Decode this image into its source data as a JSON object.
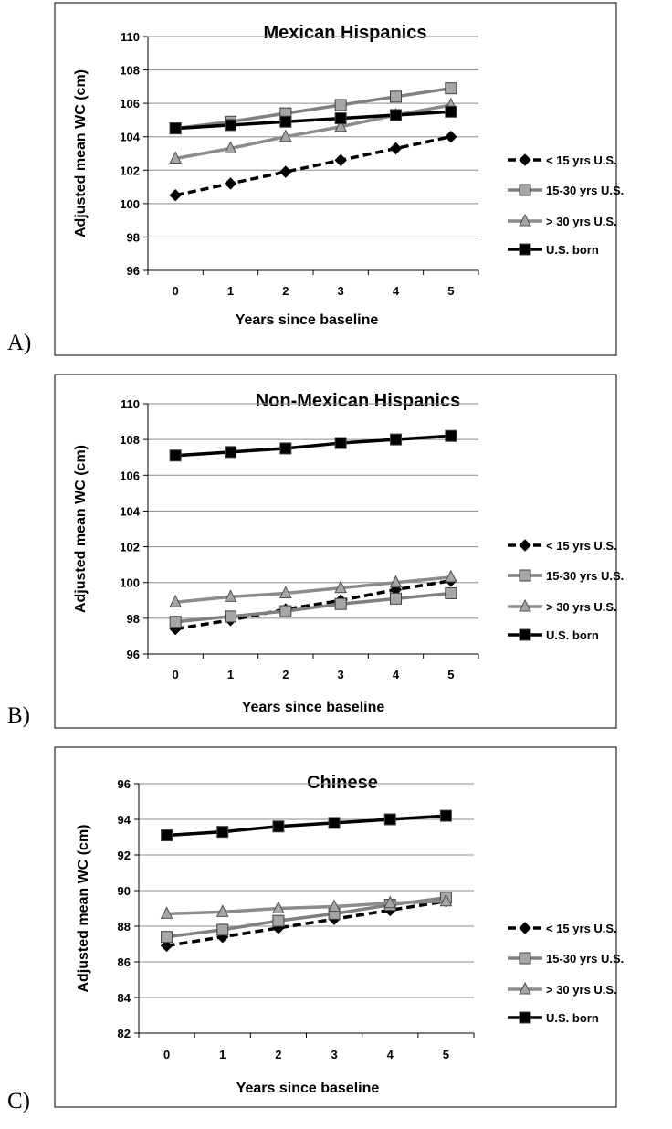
{
  "panel_labels": [
    "A)",
    "B)",
    "C)"
  ],
  "series_styles": [
    {
      "color": "#000000",
      "dash": true,
      "marker": "diamond"
    },
    {
      "color": "#808080",
      "dash": false,
      "marker": "square"
    },
    {
      "color": "#8c8c8c",
      "dash": false,
      "marker": "triangle"
    },
    {
      "color": "#000000",
      "dash": false,
      "marker": "square"
    }
  ],
  "chart_data": [
    {
      "type": "line",
      "title": "Mexican Hispanics",
      "xlabel": "Years since baseline",
      "ylabel": "Adjusted mean WC (cm)",
      "categories": [
        "0",
        "1",
        "2",
        "3",
        "4",
        "5"
      ],
      "yticks": [
        "96",
        "98",
        "100",
        "102",
        "104",
        "106",
        "108",
        "110"
      ],
      "ylim": [
        96,
        110
      ],
      "grid": true,
      "legend_position": "right",
      "series": [
        {
          "name": "< 15 yrs U.S.",
          "values": [
            100.5,
            101.2,
            101.9,
            102.6,
            103.3,
            104.0
          ]
        },
        {
          "name": "15-30 yrs U.S.",
          "values": [
            104.5,
            104.9,
            105.4,
            105.9,
            106.4,
            106.9
          ]
        },
        {
          "name": "> 30 yrs U.S.",
          "values": [
            102.7,
            103.3,
            104.0,
            104.6,
            105.3,
            105.9
          ]
        },
        {
          "name": "U.S. born",
          "values": [
            104.5,
            104.7,
            104.9,
            105.1,
            105.3,
            105.5
          ]
        }
      ]
    },
    {
      "type": "line",
      "title": "Non-Mexican Hispanics",
      "xlabel": "Years since baseline",
      "ylabel": "Adjusted mean WC (cm)",
      "categories": [
        "0",
        "1",
        "2",
        "3",
        "4",
        "5"
      ],
      "yticks": [
        "96",
        "98",
        "100",
        "102",
        "104",
        "106",
        "108",
        "110"
      ],
      "ylim": [
        96,
        110
      ],
      "grid": true,
      "legend_position": "right",
      "series": [
        {
          "name": "< 15 yrs U.S.",
          "values": [
            97.4,
            97.9,
            98.5,
            99.0,
            99.6,
            100.1
          ]
        },
        {
          "name": "15-30 yrs U.S.",
          "values": [
            97.8,
            98.1,
            98.4,
            98.8,
            99.1,
            99.4
          ]
        },
        {
          "name": "> 30 yrs U.S.",
          "values": [
            98.9,
            99.2,
            99.4,
            99.7,
            100.0,
            100.3
          ]
        },
        {
          "name": "U.S. born",
          "values": [
            107.1,
            107.3,
            107.5,
            107.8,
            108.0,
            108.2
          ]
        }
      ]
    },
    {
      "type": "line",
      "title": "Chinese",
      "xlabel": "Years since baseline",
      "ylabel": "Adjusted mean WC (cm)",
      "categories": [
        "0",
        "1",
        "2",
        "3",
        "4",
        "5"
      ],
      "yticks": [
        "82",
        "84",
        "86",
        "88",
        "90",
        "92",
        "94",
        "96"
      ],
      "ylim": [
        82,
        96
      ],
      "grid": true,
      "legend_position": "right",
      "series": [
        {
          "name": "< 15 yrs U.S.",
          "values": [
            86.9,
            87.4,
            87.9,
            88.4,
            88.9,
            89.4
          ]
        },
        {
          "name": "15-30 yrs U.S.",
          "values": [
            87.4,
            87.8,
            88.3,
            88.7,
            89.2,
            89.6
          ]
        },
        {
          "name": "> 30 yrs U.S.",
          "values": [
            88.7,
            88.8,
            89.0,
            89.1,
            89.3,
            89.4
          ]
        },
        {
          "name": "U.S. born",
          "values": [
            93.1,
            93.3,
            93.6,
            93.8,
            94.0,
            94.2
          ]
        }
      ]
    }
  ]
}
